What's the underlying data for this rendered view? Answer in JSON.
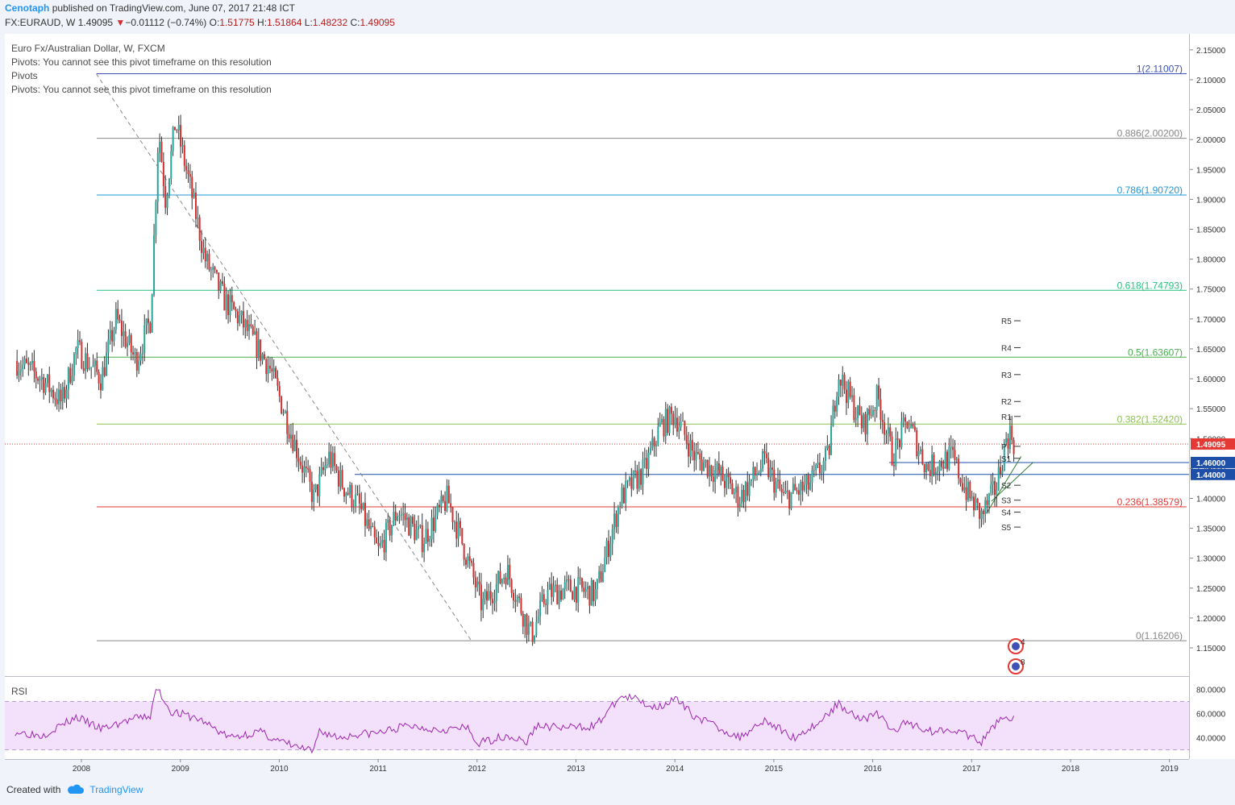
{
  "header": {
    "author": "Cenotaph",
    "published_text": "published on TradingView.com, June 07, 2017 21:48 ICT",
    "symbol": "FX:EURAUD, W",
    "last": "1.49095",
    "direction_glyph": "▼",
    "change": "−0.01112 (−0.74%)",
    "open_label": "O:",
    "open": "1.51775",
    "high_label": "H:",
    "high": "1.51864",
    "low_label": "L:",
    "low": "1.48232",
    "close_label": "C:",
    "close": "1.49095"
  },
  "legend": {
    "instrument": "Euro Fx/Australian Dollar, W, FXCM",
    "line1": "Pivots: You cannot see this pivot timeframe on this resolution",
    "line2": "Pivots",
    "line3": "Pivots: You cannot see this pivot timeframe on this resolution"
  },
  "rsi_label": "RSI",
  "footer": {
    "created_with": "Created with",
    "brand": "TradingView"
  },
  "colors": {
    "up": "#26a69a",
    "down": "#d32f2f",
    "wick": "#333333",
    "rsi": "#9c27b0",
    "rsi_band": "#f3e0fa",
    "last_price": "#e53935",
    "level": "#1e4fa8"
  },
  "chart_data": [
    {
      "type": "candlestick",
      "title": "Euro Fx/Australian Dollar, W, FXCM",
      "x_axis": {
        "ticks": [
          "2008",
          "2009",
          "2010",
          "2011",
          "2012",
          "2013",
          "2014",
          "2015",
          "2016",
          "2017",
          "2018",
          "2019"
        ]
      },
      "y_axis": {
        "range": [
          1.115,
          2.17
        ],
        "ticks": [
          "1.15000",
          "1.20000",
          "1.25000",
          "1.30000",
          "1.35000",
          "1.40000",
          "1.45000",
          "1.50000",
          "1.55000",
          "1.60000",
          "1.65000",
          "1.70000",
          "1.75000",
          "1.80000",
          "1.85000",
          "1.90000",
          "1.95000",
          "2.00000",
          "2.05000",
          "2.10000",
          "2.15000"
        ]
      },
      "approx_weekly_closes_anchor": [
        [
          2007.33,
          1.63
        ],
        [
          2007.6,
          1.6
        ],
        [
          2007.8,
          1.56
        ],
        [
          2007.95,
          1.65
        ],
        [
          2008.2,
          1.6
        ],
        [
          2008.35,
          1.7
        ],
        [
          2008.55,
          1.63
        ],
        [
          2008.7,
          1.7
        ],
        [
          2008.78,
          2.02
        ],
        [
          2008.85,
          1.9
        ],
        [
          2008.95,
          2.03
        ],
        [
          2009.1,
          1.92
        ],
        [
          2009.25,
          1.8
        ],
        [
          2009.45,
          1.73
        ],
        [
          2009.6,
          1.7
        ],
        [
          2009.9,
          1.62
        ],
        [
          2010.0,
          1.57
        ],
        [
          2010.2,
          1.47
        ],
        [
          2010.35,
          1.4
        ],
        [
          2010.5,
          1.47
        ],
        [
          2010.65,
          1.42
        ],
        [
          2010.8,
          1.39
        ],
        [
          2011.0,
          1.31
        ],
        [
          2011.2,
          1.38
        ],
        [
          2011.45,
          1.33
        ],
        [
          2011.7,
          1.4
        ],
        [
          2011.9,
          1.3
        ],
        [
          2012.05,
          1.22
        ],
        [
          2012.3,
          1.28
        ],
        [
          2012.55,
          1.17
        ],
        [
          2012.7,
          1.24
        ],
        [
          2012.95,
          1.25
        ],
        [
          2013.2,
          1.24
        ],
        [
          2013.45,
          1.4
        ],
        [
          2013.7,
          1.45
        ],
        [
          2013.85,
          1.52
        ],
        [
          2014.0,
          1.54
        ],
        [
          2014.2,
          1.47
        ],
        [
          2014.45,
          1.44
        ],
        [
          2014.65,
          1.4
        ],
        [
          2014.9,
          1.46
        ],
        [
          2015.1,
          1.4
        ],
        [
          2015.35,
          1.42
        ],
        [
          2015.55,
          1.47
        ],
        [
          2015.65,
          1.61
        ],
        [
          2015.9,
          1.52
        ],
        [
          2016.05,
          1.57
        ],
        [
          2016.2,
          1.47
        ],
        [
          2016.35,
          1.53
        ],
        [
          2016.55,
          1.45
        ],
        [
          2016.8,
          1.47
        ],
        [
          2016.95,
          1.41
        ],
        [
          2017.1,
          1.37
        ],
        [
          2017.25,
          1.42
        ],
        [
          2017.35,
          1.5
        ],
        [
          2017.4,
          1.51
        ],
        [
          2017.43,
          1.49
        ]
      ],
      "fibonacci": [
        {
          "ratio": "1",
          "level": 2.11007,
          "label": "1(2.11007)",
          "color": "#3f51b5"
        },
        {
          "ratio": "0.886",
          "level": 2.002,
          "label": "0.886(2.00200)",
          "color": "#888888"
        },
        {
          "ratio": "0.786",
          "level": 1.9072,
          "label": "0.786(1.90720)",
          "color": "#2196d3"
        },
        {
          "ratio": "0.618",
          "level": 1.74793,
          "label": "0.618(1.74793)",
          "color": "#26c281"
        },
        {
          "ratio": "0.5",
          "level": 1.63607,
          "label": "0.5(1.63607)",
          "color": "#4caf50"
        },
        {
          "ratio": "0.382",
          "level": 1.5242,
          "label": "0.382(1.52420)",
          "color": "#8bc34a"
        },
        {
          "ratio": "0.236",
          "level": 1.38579,
          "label": "0.236(1.38579)",
          "color": "#e53935"
        },
        {
          "ratio": "0",
          "level": 1.16206,
          "label": "0(1.16206)",
          "color": "#888888"
        }
      ],
      "horizontal_levels": [
        {
          "value": 1.46,
          "label": "1.46000"
        },
        {
          "value": 1.44,
          "label": "1.44000"
        }
      ],
      "last_price": {
        "value": 1.49095,
        "label": "1.49095"
      },
      "pivots": [
        {
          "name": "R5",
          "value": 1.697
        },
        {
          "name": "R4",
          "value": 1.652
        },
        {
          "name": "R3",
          "value": 1.607
        },
        {
          "name": "R2",
          "value": 1.562
        },
        {
          "name": "R1",
          "value": 1.537
        },
        {
          "name": "P",
          "value": 1.487
        },
        {
          "name": "S1",
          "value": 1.467
        },
        {
          "name": "S2",
          "value": 1.422
        },
        {
          "name": "S3",
          "value": 1.397
        },
        {
          "name": "S4",
          "value": 1.377
        },
        {
          "name": "S5",
          "value": 1.352
        }
      ],
      "markers": [
        "4",
        "8"
      ]
    },
    {
      "type": "line",
      "title": "RSI",
      "y_axis": {
        "range": [
          25,
          85
        ],
        "ticks": [
          "40.0000",
          "60.0000",
          "80.0000"
        ],
        "bands": [
          30,
          70
        ]
      },
      "approx_values_anchor": [
        [
          2007.33,
          45
        ],
        [
          2007.6,
          42
        ],
        [
          2007.95,
          57
        ],
        [
          2008.2,
          47
        ],
        [
          2008.5,
          55
        ],
        [
          2008.7,
          58
        ],
        [
          2008.76,
          82
        ],
        [
          2008.9,
          62
        ],
        [
          2009.2,
          55
        ],
        [
          2009.5,
          40
        ],
        [
          2009.8,
          45
        ],
        [
          2010.0,
          37
        ],
        [
          2010.35,
          28
        ],
        [
          2010.4,
          46
        ],
        [
          2010.6,
          40
        ],
        [
          2010.8,
          43
        ],
        [
          2011.0,
          44
        ],
        [
          2011.3,
          50
        ],
        [
          2011.6,
          47
        ],
        [
          2011.9,
          48
        ],
        [
          2012.0,
          35
        ],
        [
          2012.3,
          42
        ],
        [
          2012.5,
          36
        ],
        [
          2012.6,
          50
        ],
        [
          2012.9,
          48
        ],
        [
          2013.2,
          50
        ],
        [
          2013.45,
          74
        ],
        [
          2013.6,
          72
        ],
        [
          2013.8,
          65
        ],
        [
          2014.0,
          72
        ],
        [
          2014.2,
          58
        ],
        [
          2014.45,
          48
        ],
        [
          2014.65,
          40
        ],
        [
          2014.9,
          55
        ],
        [
          2015.2,
          40
        ],
        [
          2015.45,
          52
        ],
        [
          2015.65,
          68
        ],
        [
          2015.9,
          55
        ],
        [
          2016.05,
          60
        ],
        [
          2016.2,
          45
        ],
        [
          2016.35,
          53
        ],
        [
          2016.6,
          45
        ],
        [
          2016.8,
          48
        ],
        [
          2016.95,
          42
        ],
        [
          2017.1,
          36
        ],
        [
          2017.3,
          58
        ],
        [
          2017.43,
          55
        ]
      ]
    }
  ]
}
